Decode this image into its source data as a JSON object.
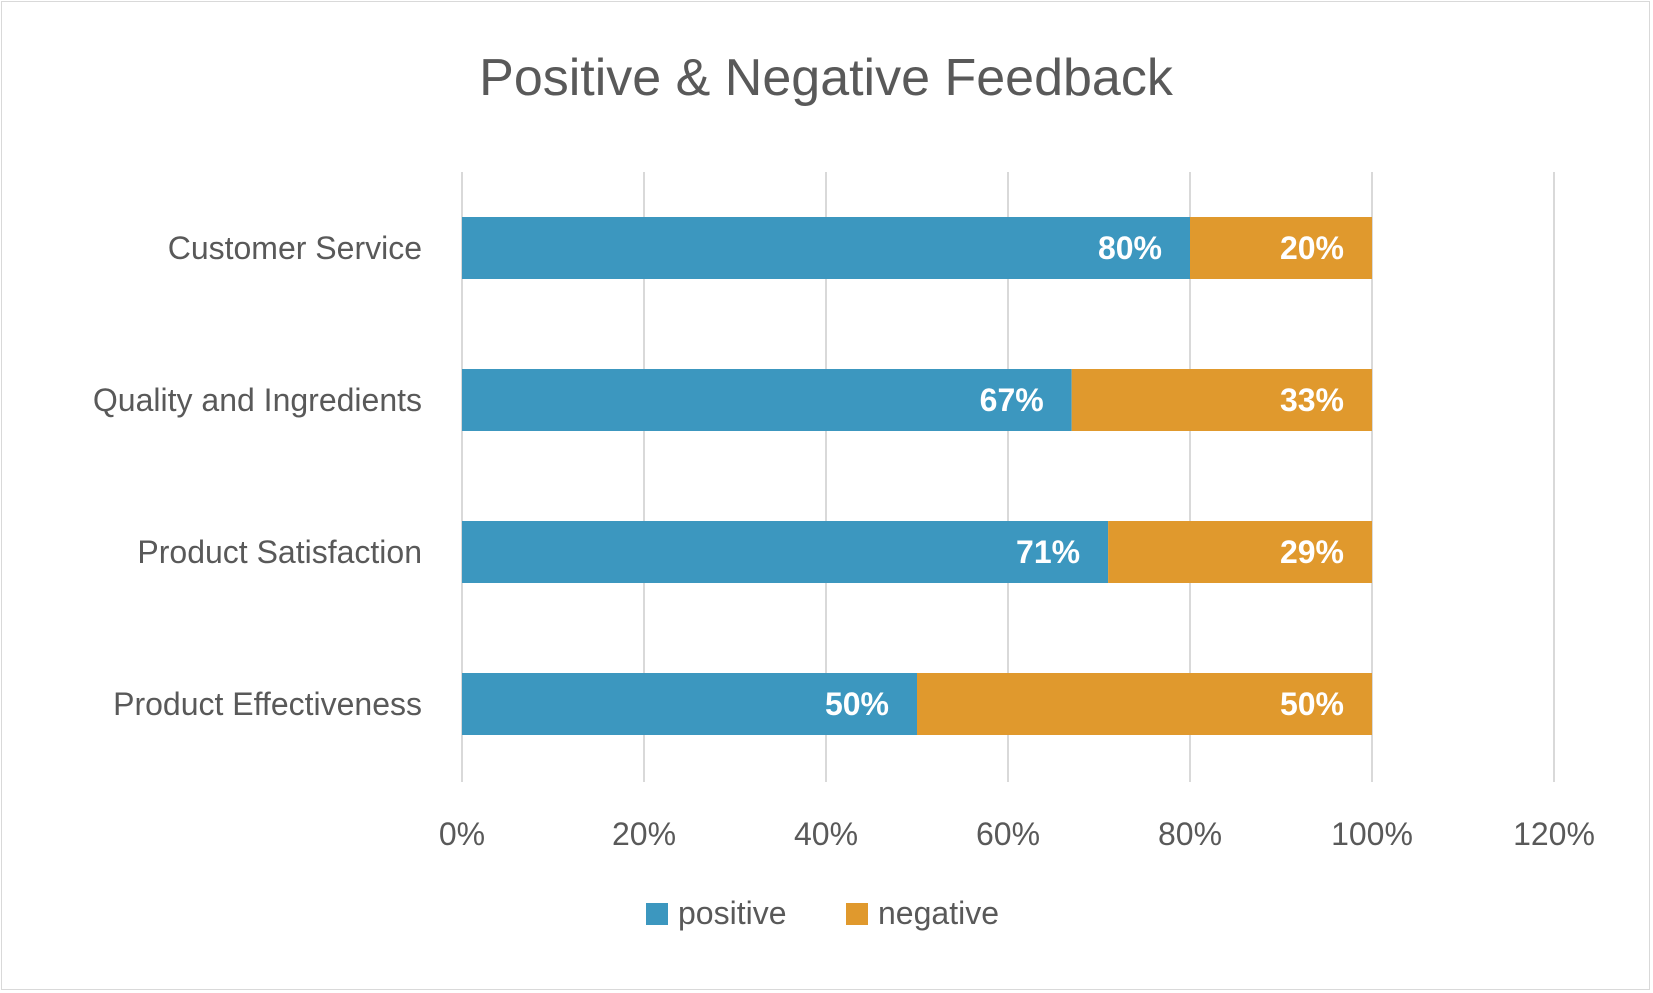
{
  "chart_data": {
    "type": "bar",
    "orientation": "horizontal",
    "stacked": true,
    "title": "Positive & Negative Feedback",
    "categories": [
      "Customer Service",
      "Quality and Ingredients",
      "Product Satisfaction",
      "Product Effectiveness"
    ],
    "series": [
      {
        "name": "positive",
        "color": "#3C97BF",
        "values": [
          80,
          67,
          71,
          50
        ],
        "labels": [
          "80%",
          "67%",
          "71%",
          "50%"
        ]
      },
      {
        "name": "negative",
        "color": "#E0992D",
        "values": [
          20,
          33,
          29,
          50
        ],
        "labels": [
          "20%",
          "33%",
          "29%",
          "50%"
        ]
      }
    ],
    "xlim": [
      0,
      120
    ],
    "xticks": [
      0,
      20,
      40,
      60,
      80,
      100,
      120
    ],
    "xtick_labels": [
      "0%",
      "20%",
      "40%",
      "60%",
      "80%",
      "100%",
      "120%"
    ],
    "grid": true,
    "legend_position": "bottom"
  }
}
